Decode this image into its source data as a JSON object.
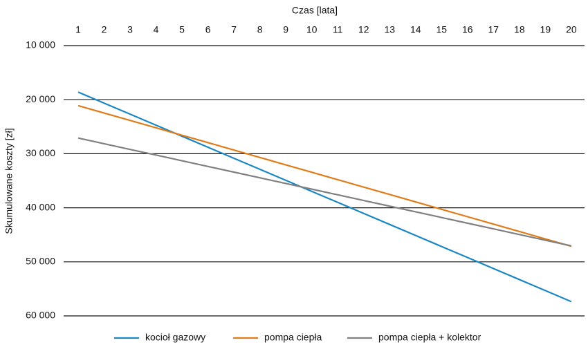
{
  "chart_data": {
    "type": "line",
    "x_label": "Czas [lata]",
    "y_label": "Skumulowane koszty [zł]",
    "x": [
      1,
      2,
      3,
      4,
      5,
      6,
      7,
      8,
      9,
      10,
      11,
      12,
      13,
      14,
      15,
      16,
      17,
      18,
      19,
      20
    ],
    "xlim": [
      0.44,
      20.51
    ],
    "xticks": [
      1,
      2,
      3,
      4,
      5,
      6,
      7,
      8,
      9,
      10,
      11,
      12,
      13,
      14,
      15,
      16,
      17,
      18,
      19,
      20
    ],
    "ylim": [
      10000,
      60000
    ],
    "y_inverted": true,
    "yticks": [
      {
        "value": 10000,
        "label": "10 000"
      },
      {
        "value": 20000,
        "label": "20 000"
      },
      {
        "value": 30000,
        "label": "30 000"
      },
      {
        "value": 40000,
        "label": "40 000"
      },
      {
        "value": 50000,
        "label": "50 000"
      },
      {
        "value": 60000,
        "label": "60 000"
      }
    ],
    "grid": true,
    "legend": "bottom",
    "series": [
      {
        "name": "kocioł gazowy",
        "color": "#1a87c4",
        "values": [
          18600,
          20640,
          22680,
          24720,
          26760,
          28800,
          30840,
          32880,
          34920,
          36960,
          39000,
          41040,
          43080,
          45120,
          47160,
          49200,
          51240,
          53280,
          55320,
          57360
        ]
      },
      {
        "name": "pompa ciepła",
        "color": "#e07b1a",
        "values": [
          21100,
          22470,
          23840,
          25210,
          26580,
          27950,
          29320,
          30690,
          32060,
          33430,
          34800,
          36170,
          37540,
          38910,
          40280,
          41650,
          43020,
          44390,
          45760,
          47130
        ]
      },
      {
        "name": "pompa ciepła + kolektor",
        "color": "#808080",
        "values": [
          27100,
          28150,
          29200,
          30250,
          31300,
          32350,
          33400,
          34450,
          35500,
          36550,
          37600,
          38650,
          39700,
          40750,
          41800,
          42850,
          43900,
          44950,
          46000,
          47050
        ]
      }
    ]
  }
}
